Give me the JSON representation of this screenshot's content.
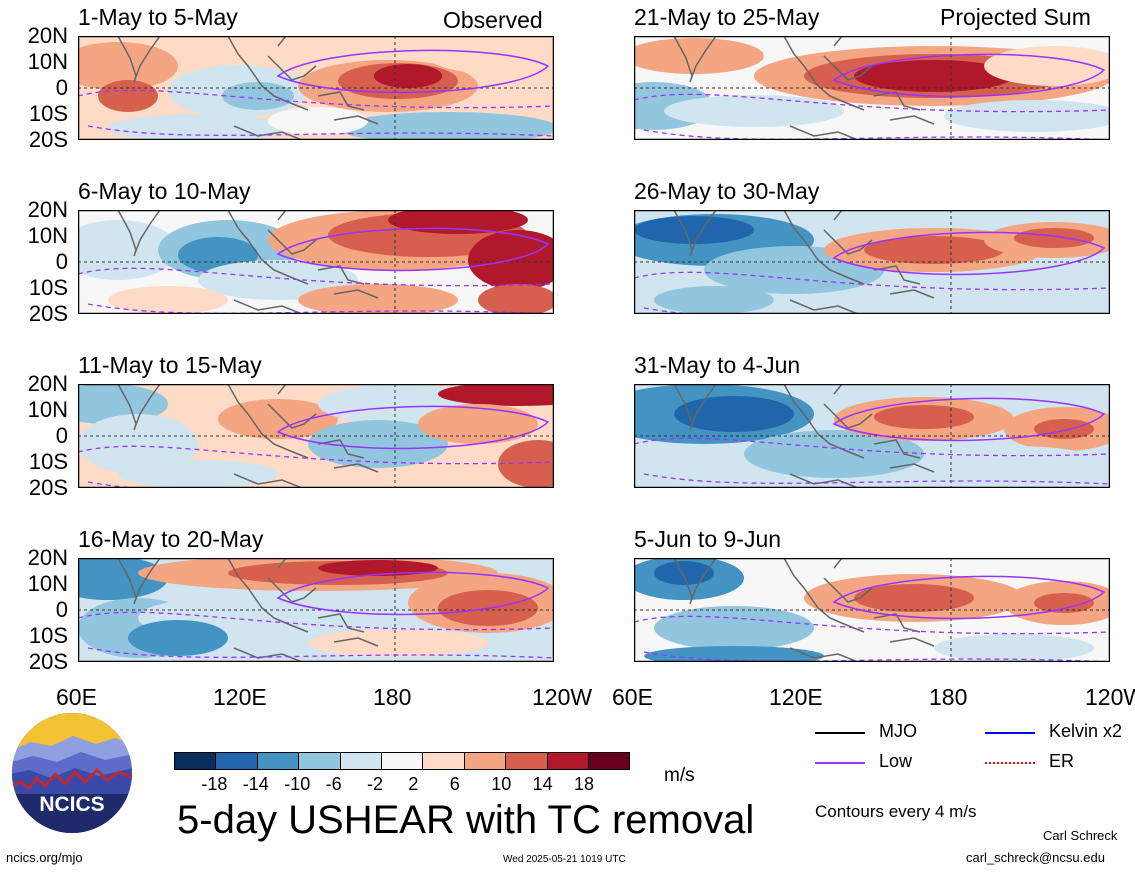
{
  "headers": {
    "left": "Observed",
    "right": "Projected Sum"
  },
  "panels": [
    {
      "title": "1-May to 5-May",
      "col": 0,
      "row": 0,
      "pattern": "o1"
    },
    {
      "title": "6-May to 10-May",
      "col": 0,
      "row": 1,
      "pattern": "o2"
    },
    {
      "title": "11-May to 15-May",
      "col": 0,
      "row": 2,
      "pattern": "o3"
    },
    {
      "title": "16-May to 20-May",
      "col": 0,
      "row": 3,
      "pattern": "o4"
    },
    {
      "title": "21-May to 25-May",
      "col": 1,
      "row": 0,
      "pattern": "p1"
    },
    {
      "title": "26-May to 30-May",
      "col": 1,
      "row": 1,
      "pattern": "p2"
    },
    {
      "title": "31-May to 4-Jun",
      "col": 1,
      "row": 2,
      "pattern": "p3"
    },
    {
      "title": "5-Jun to 9-Jun",
      "col": 1,
      "row": 3,
      "pattern": "p4"
    }
  ],
  "lat_labels": [
    "20N",
    "10N",
    "0",
    "10S",
    "20S"
  ],
  "lon_labels": [
    "60E",
    "120E",
    "180",
    "120W"
  ],
  "colorbar": {
    "colors": [
      "#0a2d5e",
      "#2166ac",
      "#4393c3",
      "#92c5de",
      "#d1e5f0",
      "#f7f7f7",
      "#fddbc7",
      "#f4a582",
      "#d6604d",
      "#b2182b",
      "#67001f"
    ],
    "ticks": [
      "-18",
      "-14",
      "-10",
      "-6",
      "-2",
      "2",
      "6",
      "10",
      "14",
      "18"
    ],
    "units": "m/s"
  },
  "legend": [
    {
      "label": "MJO",
      "color": "#000000"
    },
    {
      "label": "Kelvin x2",
      "color": "#0000ff"
    },
    {
      "label": "Low",
      "color": "#9933ff"
    },
    {
      "label": "ER",
      "color": "#ff0000"
    }
  ],
  "contour_note": "Contours every 4 m/s",
  "main_title": "5-day USHEAR with TC removal",
  "logo_text": "NCICS",
  "footer": {
    "left": "ncics.org/mjo",
    "center": "Wed 2025-05-21 1019 UTC",
    "author": "Carl Schreck",
    "email": "carl_schreck@ncsu.edu"
  }
}
